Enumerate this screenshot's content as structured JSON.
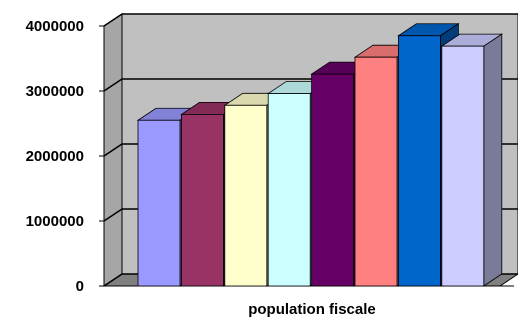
{
  "chart_data": {
    "type": "bar",
    "title": "",
    "xlabel": "population fiscale",
    "ylabel": "",
    "ylim": [
      0,
      4000000
    ],
    "yticks": [
      "4000000",
      "3000000",
      "2000000",
      "1000000",
      "0"
    ],
    "ytick_values": [
      4000000,
      3000000,
      2000000,
      1000000,
      0
    ],
    "grid": true,
    "legend": "none",
    "three_d": true,
    "series": [
      {
        "values": [
          2550000,
          2640000,
          2780000,
          2960000,
          3260000,
          3520000,
          3850000,
          3690000
        ]
      }
    ],
    "bar_colors": [
      "#9999ff",
      "#993366",
      "#ffffcc",
      "#ccffff",
      "#660066",
      "#ff8080",
      "#0066cc",
      "#ccccff"
    ],
    "wall_color": "#c0c0c0",
    "floor_color": "#808080"
  }
}
